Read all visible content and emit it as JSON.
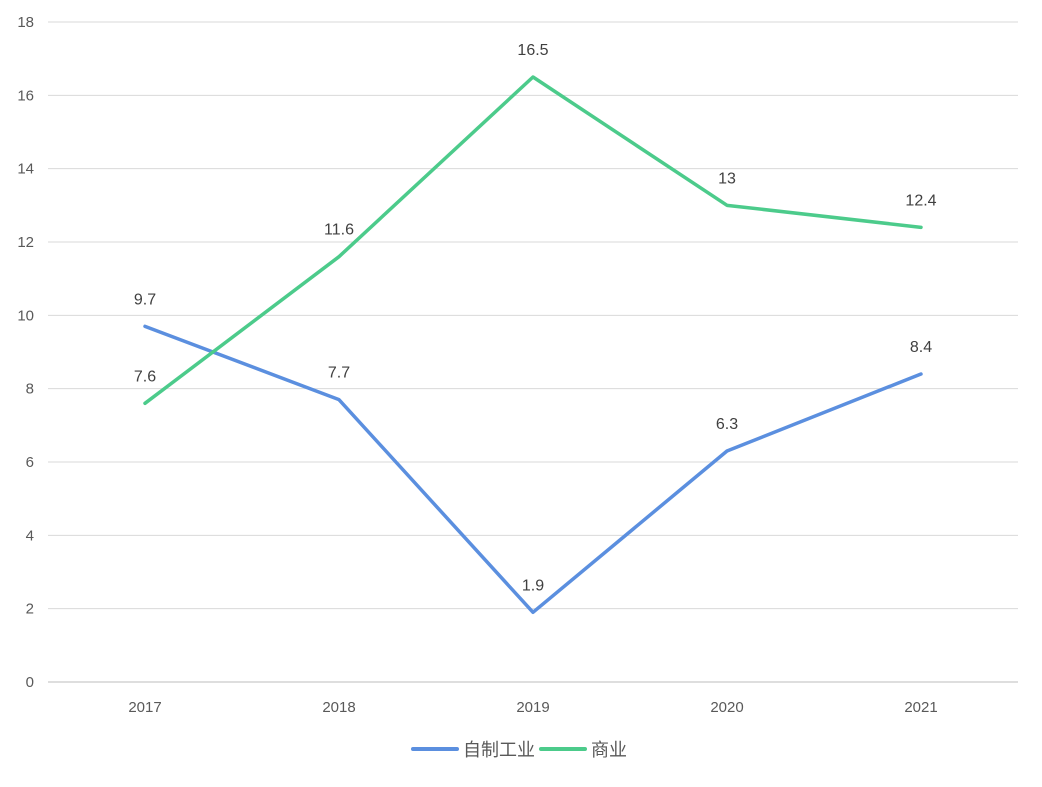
{
  "chart_data": {
    "type": "line",
    "categories": [
      "2017",
      "2018",
      "2019",
      "2020",
      "2021"
    ],
    "series": [
      {
        "name": "自制工业",
        "values": [
          9.7,
          7.7,
          1.9,
          6.3,
          8.4
        ],
        "color": "#5b8fdf"
      },
      {
        "name": "商业",
        "values": [
          7.6,
          11.6,
          16.5,
          13,
          12.4
        ],
        "color": "#4ccb8b"
      }
    ],
    "title": "",
    "xlabel": "",
    "ylabel": "",
    "ylim": [
      0,
      18
    ],
    "yticks": [
      0,
      2,
      4,
      6,
      8,
      10,
      12,
      14,
      16,
      18
    ],
    "grid": true,
    "legend": "bottom",
    "data_labels": true
  }
}
